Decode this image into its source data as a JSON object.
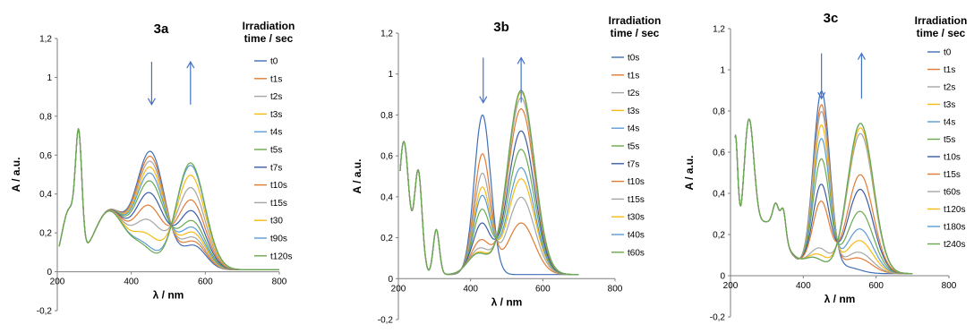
{
  "chart_data": [
    {
      "type": "line",
      "title": "3a",
      "xlabel": "λ / nm",
      "ylabel": "A / a.u.",
      "xlim": [
        200,
        800
      ],
      "ylim": [
        -0.2,
        1.2
      ],
      "xticks": [
        {
          "v": 200,
          "label": "200"
        },
        {
          "v": 400,
          "label": "400"
        },
        {
          "v": 600,
          "label": "600"
        },
        {
          "v": 800,
          "label": "800"
        }
      ],
      "yticks": [
        {
          "v": -0.2,
          "label": "-0,2"
        },
        {
          "v": 0,
          "label": "0"
        },
        {
          "v": 0.2,
          "label": "0,2"
        },
        {
          "v": 0.4,
          "label": "0,4"
        },
        {
          "v": 0.6,
          "label": "0,6"
        },
        {
          "v": 0.8,
          "label": "0,8"
        },
        {
          "v": 1,
          "label": "1"
        },
        {
          "v": 1.2,
          "label": "1,2"
        }
      ],
      "legend_title": [
        "Irradiation",
        "time / sec"
      ],
      "legend_position": "right",
      "arrows": {
        "down_at_nm": 455,
        "up_at_nm": 560
      },
      "model": {
        "uv": [
          {
            "c": 258,
            "w": 12,
            "h": 0.55
          },
          {
            "c": 232,
            "w": 28,
            "h": 0.3
          }
        ],
        "cis": [
          {
            "c": 452,
            "w": 55,
            "h": 0.6
          },
          {
            "c": 570,
            "w": 45,
            "h": 0.12
          }
        ],
        "trans": [
          {
            "c": 560,
            "w": 55,
            "h": 0.55
          },
          {
            "c": 430,
            "w": 45,
            "h": 0.1
          }
        ],
        "base": [
          {
            "c": 340,
            "w": 60,
            "h": 0.3
          }
        ],
        "baseline": 0.01,
        "cutoff_nm": 205,
        "end_nm": 800
      },
      "series": [
        {
          "name": "t0",
          "color": "#3F6FB7",
          "f": 0
        },
        {
          "name": "t1s",
          "color": "#E17B34",
          "f": 0.05
        },
        {
          "name": "t2s",
          "color": "#A5A5A5",
          "f": 0.1
        },
        {
          "name": "t3s",
          "color": "#F5BA12",
          "f": 0.16
        },
        {
          "name": "t4s",
          "color": "#5B9BD5",
          "f": 0.22
        },
        {
          "name": "t5s",
          "color": "#6AA84F",
          "f": 0.3
        },
        {
          "name": "t7s",
          "color": "#3B5BA5",
          "f": 0.42
        },
        {
          "name": "t10s",
          "color": "#E17B34",
          "f": 0.55
        },
        {
          "name": "t15s",
          "color": "#A5A5A5",
          "f": 0.7
        },
        {
          "name": "t30",
          "color": "#F5BA12",
          "f": 0.85
        },
        {
          "name": "t90s",
          "color": "#5B9BD5",
          "f": 0.97
        },
        {
          "name": "t120s",
          "color": "#6AA84F",
          "f": 1.0
        }
      ]
    },
    {
      "type": "line",
      "title": "3b",
      "xlabel": "λ / nm",
      "ylabel": "A / a.u.",
      "xlim": [
        200,
        800
      ],
      "ylim": [
        -0.2,
        1.2
      ],
      "xticks": [
        {
          "v": 200,
          "label": "200"
        },
        {
          "v": 400,
          "label": "400"
        },
        {
          "v": 600,
          "label": "600"
        },
        {
          "v": 800,
          "label": "800"
        }
      ],
      "yticks": [
        {
          "v": -0.2,
          "label": "-0,2"
        },
        {
          "v": 0,
          "label": "0"
        },
        {
          "v": 0.2,
          "label": "0,2"
        },
        {
          "v": 0.4,
          "label": "0,4"
        },
        {
          "v": 0.6,
          "label": "0,6"
        },
        {
          "v": 0.8,
          "label": "0,8"
        },
        {
          "v": 1,
          "label": "1"
        },
        {
          "v": 1.2,
          "label": "1,2"
        }
      ],
      "legend_title": [
        "Irradiation",
        "time / sec"
      ],
      "legend_position": "right",
      "arrows": {
        "down_at_nm": 435,
        "up_at_nm": 540
      },
      "model": {
        "uv": [
          {
            "c": 255,
            "w": 15,
            "h": 0.5
          },
          {
            "c": 215,
            "w": 20,
            "h": 0.65
          },
          {
            "c": 305,
            "w": 12,
            "h": 0.22
          }
        ],
        "cis": [
          {
            "c": 433,
            "w": 32,
            "h": 0.78
          }
        ],
        "trans": [
          {
            "c": 540,
            "w": 52,
            "h": 0.9
          },
          {
            "c": 420,
            "w": 40,
            "h": 0.1
          }
        ],
        "base": [],
        "baseline": 0.02,
        "cutoff_nm": 205,
        "end_nm": 700
      },
      "series": [
        {
          "name": "t0s",
          "color": "#3F6FB7",
          "f": 0
        },
        {
          "name": "t1s",
          "color": "#E17B34",
          "f": 0.28
        },
        {
          "name": "t2s",
          "color": "#A5A5A5",
          "f": 0.42
        },
        {
          "name": "t3s",
          "color": "#F5BA12",
          "f": 0.52
        },
        {
          "name": "t4s",
          "color": "#5B9BD5",
          "f": 0.58
        },
        {
          "name": "t5s",
          "color": "#6AA84F",
          "f": 0.68
        },
        {
          "name": "t7s",
          "color": "#3B5BA5",
          "f": 0.78
        },
        {
          "name": "t10s",
          "color": "#E17B34",
          "f": 0.9
        },
        {
          "name": "t15s",
          "color": "#A5A5A5",
          "f": 0.96
        },
        {
          "name": "t30s",
          "color": "#F5BA12",
          "f": 0.99
        },
        {
          "name": "t40s",
          "color": "#5B9BD5",
          "f": 1.0
        },
        {
          "name": "t60s",
          "color": "#6AA84F",
          "f": 1.0
        }
      ]
    },
    {
      "type": "line",
      "title": "3c",
      "xlabel": "λ / nm",
      "ylabel": "A / a.u.",
      "xlim": [
        200,
        800
      ],
      "ylim": [
        -0.2,
        1.2
      ],
      "xticks": [
        {
          "v": 200,
          "label": "200"
        },
        {
          "v": 400,
          "label": "400"
        },
        {
          "v": 600,
          "label": "600"
        },
        {
          "v": 800,
          "label": "800"
        }
      ],
      "yticks": [
        {
          "v": -0.2,
          "label": "-0,2"
        },
        {
          "v": 0,
          "label": "0"
        },
        {
          "v": 0.2,
          "label": "0,2"
        },
        {
          "v": 0.4,
          "label": "0,4"
        },
        {
          "v": 0.6,
          "label": "0,6"
        },
        {
          "v": 0.8,
          "label": "0,8"
        },
        {
          "v": 1,
          "label": "1"
        },
        {
          "v": 1.2,
          "label": "1,2"
        }
      ],
      "legend_title": [
        "Irradiation",
        "time / sec"
      ],
      "legend_position": "right",
      "arrows": {
        "down_at_nm": 450,
        "up_at_nm": 560
      },
      "model": {
        "uv": [
          {
            "c": 250,
            "w": 20,
            "h": 0.6
          },
          {
            "c": 213,
            "w": 10,
            "h": 0.6
          },
          {
            "c": 325,
            "w": 12,
            "h": 0.12
          },
          {
            "c": 345,
            "w": 10,
            "h": 0.14
          }
        ],
        "cis": [
          {
            "c": 450,
            "w": 32,
            "h": 0.88
          },
          {
            "c": 520,
            "w": 50,
            "h": 0.03
          }
        ],
        "trans": [
          {
            "c": 557,
            "w": 50,
            "h": 0.73
          },
          {
            "c": 430,
            "w": 40,
            "h": 0.07
          }
        ],
        "base": [
          {
            "c": 300,
            "w": 70,
            "h": 0.25
          }
        ],
        "baseline": 0.01,
        "cutoff_nm": 212,
        "end_nm": 700
      },
      "series": [
        {
          "name": "t0",
          "color": "#3F6FB7",
          "f": 0
        },
        {
          "name": "t1s",
          "color": "#E17B34",
          "f": 0.08
        },
        {
          "name": "t2s",
          "color": "#A5A5A5",
          "f": 0.12
        },
        {
          "name": "t3s",
          "color": "#F5BA12",
          "f": 0.2
        },
        {
          "name": "t4s",
          "color": "#5B9BD5",
          "f": 0.28
        },
        {
          "name": "t5s",
          "color": "#6AA84F",
          "f": 0.4
        },
        {
          "name": "t10s",
          "color": "#3B5BA5",
          "f": 0.55
        },
        {
          "name": "t15s",
          "color": "#E17B34",
          "f": 0.65
        },
        {
          "name": "t60s",
          "color": "#A5A5A5",
          "f": 0.93
        },
        {
          "name": "t120s",
          "color": "#F5BA12",
          "f": 0.97
        },
        {
          "name": "t180s",
          "color": "#5B9BD5",
          "f": 1.0
        },
        {
          "name": "t240s",
          "color": "#6AA84F",
          "f": 1.0
        }
      ]
    }
  ]
}
